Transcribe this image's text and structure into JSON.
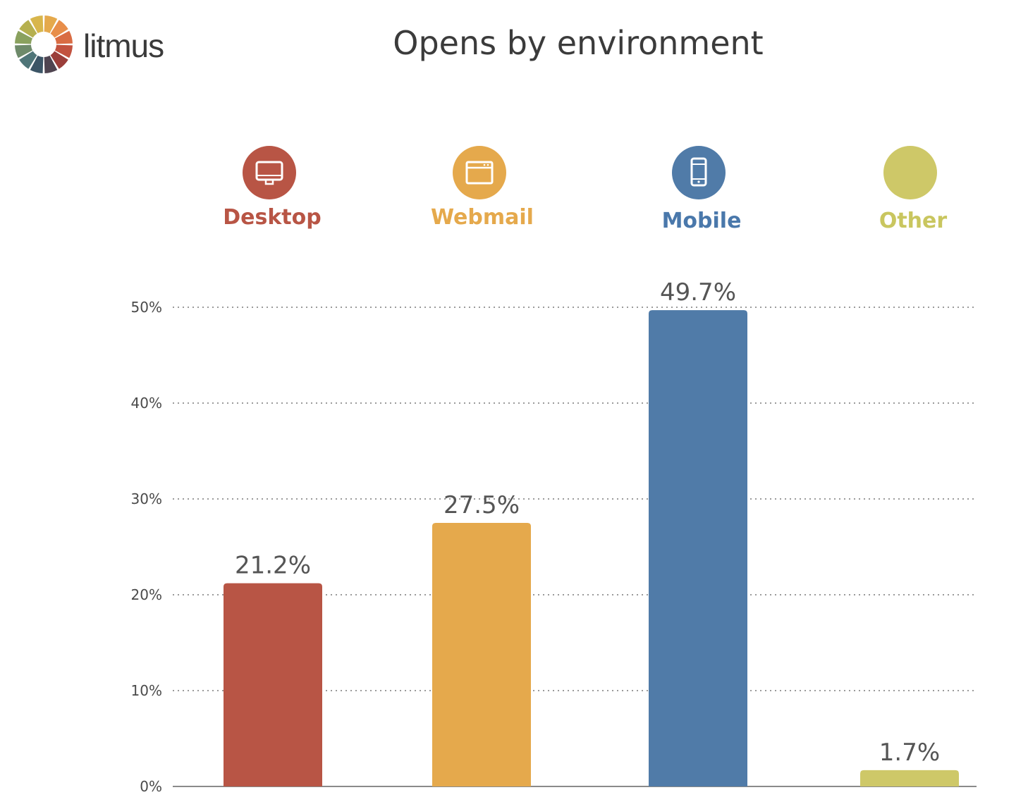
{
  "logo": {
    "text": "litmus"
  },
  "chart_data": {
    "type": "bar",
    "title": "Opens by environment",
    "categories": [
      "Desktop",
      "Webmail",
      "Mobile",
      "Other"
    ],
    "values": [
      21.2,
      27.5,
      49.7,
      1.7
    ],
    "value_labels": [
      "21.2%",
      "27.5%",
      "49.7%",
      "1.7%"
    ],
    "icons": [
      "desktop-monitor-icon",
      "browser-window-icon",
      "mobile-phone-icon",
      "blank-circle-icon"
    ],
    "colors": [
      "#b85545",
      "#e5a94c",
      "#507ba8",
      "#cec868"
    ],
    "label_colors": [
      "#b85545",
      "#e5a94c",
      "#4a78ab",
      "#c9c65f"
    ],
    "ylim": [
      0,
      50
    ],
    "yticks": [
      0,
      10,
      20,
      30,
      40,
      50
    ],
    "ytick_labels": [
      "0%",
      "10%",
      "20%",
      "30%",
      "40%",
      "50%"
    ],
    "grid": true,
    "grid_style": "dotted",
    "xlabel": "",
    "ylabel": ""
  }
}
